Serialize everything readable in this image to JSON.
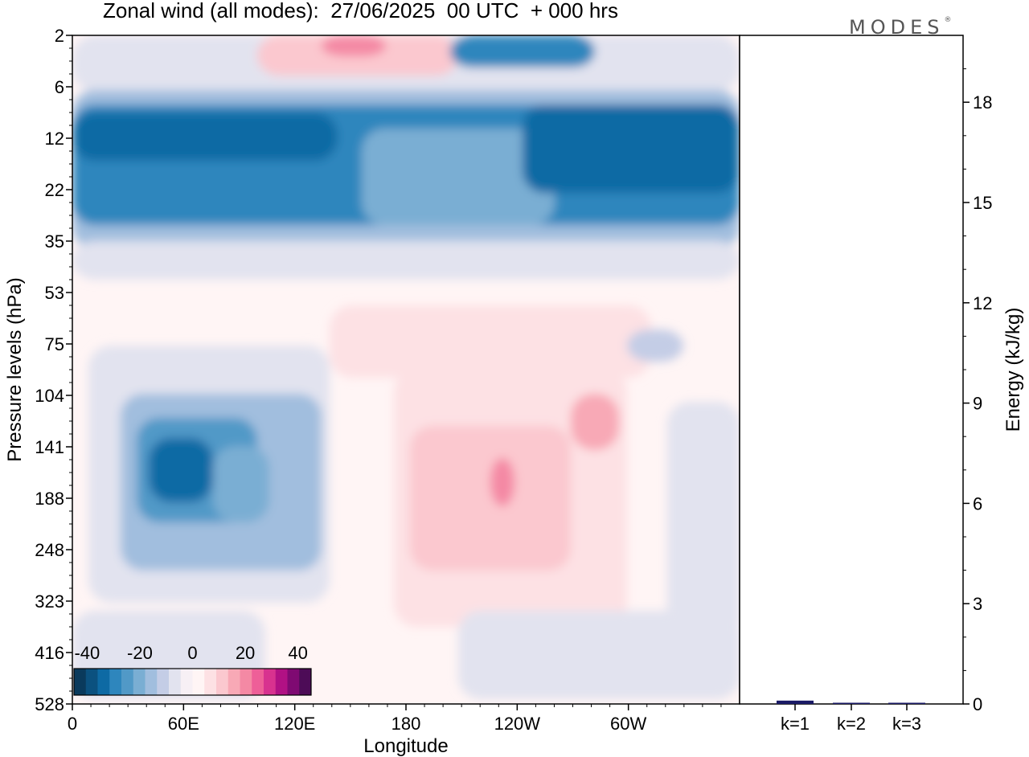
{
  "chart_data": [
    {
      "type": "heatmap",
      "title": "Zonal wind (all modes):  27/06/2025  00 UTC  + 000 hrs",
      "xlabel": "Longitude",
      "ylabel": "Pressure levels (hPa)",
      "x_ticks": [
        "0",
        "60E",
        "120E",
        "180",
        "120W",
        "60W"
      ],
      "x_tick_values": [
        0,
        60,
        120,
        180,
        240,
        300
      ],
      "xlim": [
        0,
        360
      ],
      "y_ticks": [
        "2",
        "6",
        "12",
        "22",
        "35",
        "53",
        "75",
        "104",
        "141",
        "188",
        "248",
        "323",
        "416",
        "528"
      ],
      "colorbar": {
        "ticks": [
          "-40",
          "-20",
          "0",
          "20",
          "40"
        ],
        "tick_values": [
          -40,
          -20,
          0,
          20,
          40
        ],
        "range": [
          -45,
          45
        ],
        "colors": [
          "#0a3a5c",
          "#0b517f",
          "#0e6aa4",
          "#2e86bd",
          "#5199c7",
          "#7aaed3",
          "#a1bede",
          "#c4cde6",
          "#e2e3ef",
          "#f7f0f5",
          "#fff5f5",
          "#fde1e4",
          "#fbc8cf",
          "#f8a9b6",
          "#f489a4",
          "#ee5f98",
          "#d8328f",
          "#b11184",
          "#7f0a72",
          "#4d0c57"
        ]
      },
      "field_layers": [
        {
          "value": -7,
          "lat_band": [
            2,
            53
          ],
          "note": ""
        },
        {
          "value": -30,
          "lat_band": [
            6,
            35
          ],
          "note": ""
        },
        {
          "value": 8,
          "lat_band": [
            53,
            330
          ],
          "note": ""
        }
      ]
    },
    {
      "type": "bar",
      "ylabel": "Energy (kJ/kg)",
      "categories": [
        "k=1",
        "k=2",
        "k=3"
      ],
      "values": [
        0.1,
        0.02,
        0.01
      ],
      "ylim": [
        0,
        20
      ],
      "y_ticks": [
        0,
        3,
        6,
        9,
        12,
        15,
        18
      ],
      "bar_color": "#1a1a66"
    }
  ]
}
